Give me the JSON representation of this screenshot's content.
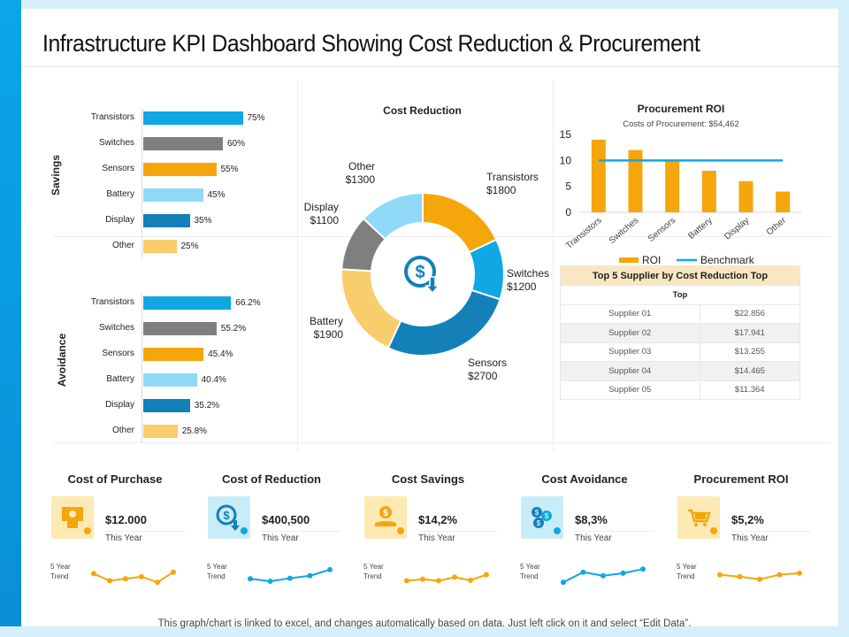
{
  "title": "Infrastructure KPI Dashboard Showing Cost Reduction & Procurement",
  "footer": "This graph/chart is linked to excel, and changes automatically based on data. Just left click on it and select “Edit Data”.",
  "colors": {
    "blue": "#0fa7e4",
    "gray": "#7f7f7f",
    "orange": "#f5a60b",
    "light_blue": "#8fd9f7",
    "dark_blue": "#1380b8",
    "light_orange": "#f8cd6b"
  },
  "chart_data": [
    {
      "type": "bar",
      "orientation": "horizontal",
      "title": "Savings",
      "ylabel": "Savings",
      "categories": [
        "Transistors",
        "Switches",
        "Sensors",
        "Battery",
        "Display",
        "Other"
      ],
      "values": [
        75,
        60,
        55,
        45,
        35,
        25
      ],
      "value_labels": [
        "75%",
        "60%",
        "55%",
        "45%",
        "35%",
        "25%"
      ],
      "unit": "%",
      "xlim": [
        0,
        100
      ]
    },
    {
      "type": "bar",
      "orientation": "horizontal",
      "title": "Avoidance",
      "ylabel": "Avoidance",
      "categories": [
        "Transistors",
        "Switches",
        "Sensors",
        "Battery",
        "Display",
        "Other"
      ],
      "values": [
        66.2,
        55.2,
        45.4,
        40.4,
        35.2,
        25.8
      ],
      "value_labels": [
        "66.2%",
        "55.2%",
        "45.4%",
        "40.4%",
        "35.2%",
        "25.8%"
      ],
      "unit": "%",
      "xlim": [
        0,
        100
      ]
    },
    {
      "type": "pie",
      "donut": true,
      "title": "Cost Reduction",
      "categories": [
        "Transistors",
        "Switches",
        "Sensors",
        "Battery",
        "Display",
        "Other"
      ],
      "values": [
        1800,
        1200,
        2700,
        1900,
        1100,
        1300
      ],
      "value_labels": [
        "$1800",
        "$1200",
        "$2700",
        "$1900",
        "$1100",
        "$1300"
      ]
    },
    {
      "type": "bar",
      "title": "Procurement ROI",
      "subtitle": "Costs of Procurement: $54,462",
      "categories": [
        "Transistors",
        "Switches",
        "Sensors",
        "Battery",
        "Display",
        "Other"
      ],
      "series": [
        {
          "name": "ROI",
          "type": "bar",
          "values": [
            14,
            12,
            10,
            8,
            6,
            4
          ]
        },
        {
          "name": "Benchmark",
          "type": "line",
          "values": [
            10,
            10,
            10,
            10,
            10,
            10
          ]
        }
      ],
      "yticks": [
        "0",
        "5",
        "10",
        "15"
      ],
      "ylim": [
        0,
        15
      ],
      "legend": "bottom"
    },
    {
      "type": "table",
      "title": "Top 5 Supplier by Cost Reduction Top",
      "header": "Top",
      "rows": [
        [
          "Supplier 01",
          "$22.856"
        ],
        [
          "Supplier 02",
          "$17.941"
        ],
        [
          "Supplier 03",
          "$13.255"
        ],
        [
          "Supplier 04",
          "$14.465"
        ],
        [
          "Supplier 05",
          "$11.364"
        ]
      ]
    },
    {
      "type": "line",
      "title": "Cost of Purchase trend",
      "values": [
        5.2,
        3.8,
        4.2,
        4.6,
        3.5,
        5.5
      ]
    },
    {
      "type": "line",
      "title": "Cost of Reduction trend",
      "values": [
        4.2,
        3.7,
        4.3,
        4.8,
        6.0
      ]
    },
    {
      "type": "line",
      "title": "Cost Savings trend",
      "values": [
        3.8,
        4.1,
        3.8,
        4.5,
        3.9,
        5.0
      ]
    },
    {
      "type": "line",
      "title": "Cost Avoidance trend",
      "values": [
        3.5,
        5.5,
        4.8,
        5.3,
        6.1
      ]
    },
    {
      "type": "line",
      "title": "Procurement ROI trend",
      "values": [
        5.0,
        4.6,
        4.1,
        5.0,
        5.3
      ]
    }
  ],
  "kpis": [
    {
      "title": "Cost of Purchase",
      "value": "$12.000",
      "sub": "This Year",
      "trend_label_1": "5 Year",
      "trend_label_2": "Trend",
      "icon": "money-icon",
      "icon_bg": "#fde9b4",
      "trend_color": "#f5a60b"
    },
    {
      "title": "Cost of Reduction",
      "value": "$400,500",
      "sub": "This Year",
      "trend_label_1": "5 Year",
      "trend_label_2": "Trend",
      "icon": "dollar-down-icon",
      "icon_bg": "#c9ecf9",
      "trend_color": "#0fa7e4"
    },
    {
      "title": "Cost Savings",
      "value": "$14,2%",
      "sub": "This Year",
      "trend_label_1": "5 Year",
      "trend_label_2": "Trend",
      "icon": "hand-coin-icon",
      "icon_bg": "#fde9b4",
      "trend_color": "#f5a60b"
    },
    {
      "title": "Cost Avoidance",
      "value": "$8,3%",
      "sub": "This Year",
      "trend_label_1": "5 Year",
      "trend_label_2": "Trend",
      "icon": "coins-icon",
      "icon_bg": "#c9ecf9",
      "trend_color": "#0fa7e4"
    },
    {
      "title": "Procurement ROI",
      "value": "$5,2%",
      "sub": "This Year",
      "trend_label_1": "5 Year",
      "trend_label_2": "Trend",
      "icon": "cart-icon",
      "icon_bg": "#fde9b4",
      "trend_color": "#f5a60b"
    }
  ]
}
